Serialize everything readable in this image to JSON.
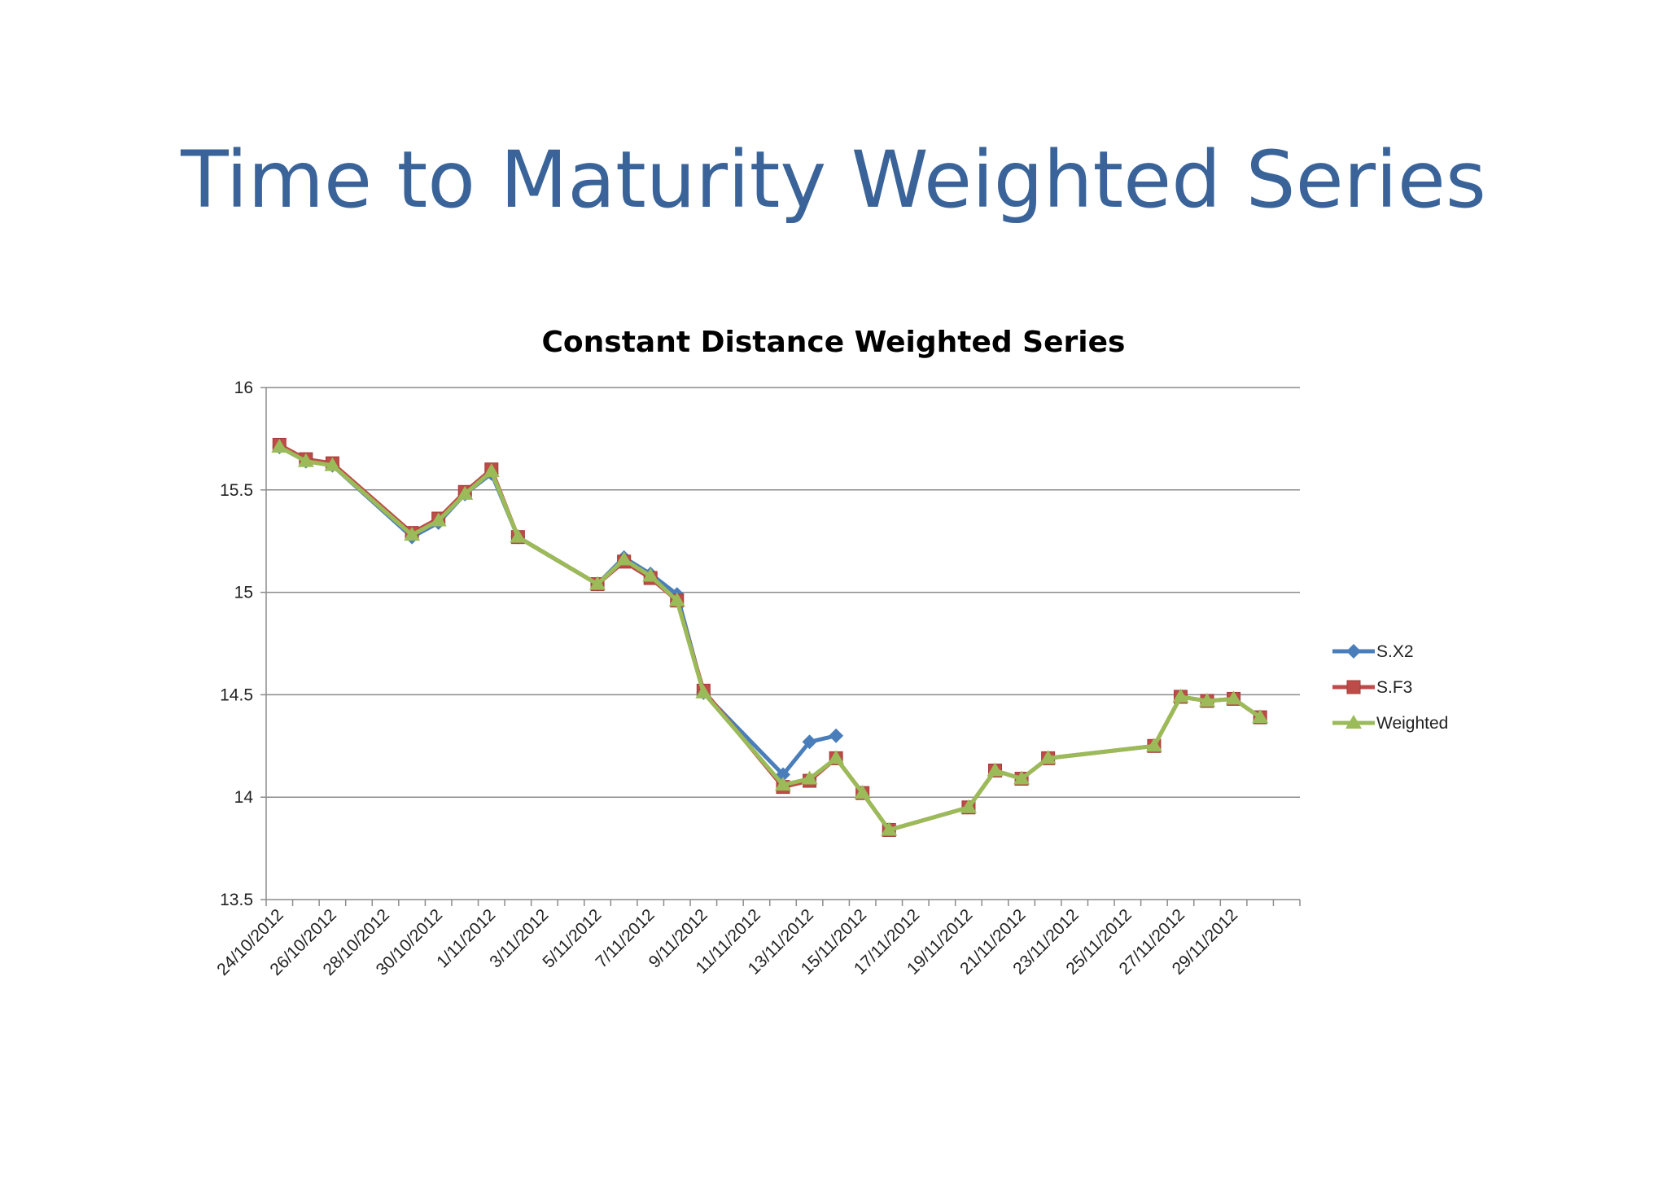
{
  "slide": {
    "title": "Time to Maturity Weighted Series"
  },
  "chart_data": {
    "type": "line",
    "title": "Constant Distance Weighted Series",
    "xlabel": "",
    "ylabel": "",
    "ylim": [
      13.5,
      16
    ],
    "yticks": [
      "16",
      "15.5",
      "15",
      "14.5",
      "14",
      "13.5"
    ],
    "xlim": [
      "2012-10-24",
      "2012-12-02"
    ],
    "x_tick_labels": [
      "24/10/2012",
      "26/10/2012",
      "28/10/2012",
      "30/10/2012",
      "1/11/2012",
      "3/11/2012",
      "5/11/2012",
      "7/11/2012",
      "9/11/2012",
      "11/11/2012",
      "13/11/2012",
      "15/11/2012",
      "17/11/2012",
      "19/11/2012",
      "21/11/2012",
      "23/11/2012",
      "25/11/2012",
      "27/11/2012",
      "29/11/2012"
    ],
    "grid": true,
    "legend_position": "right",
    "series": [
      {
        "name": "S.X2",
        "color": "#4a7ebb",
        "marker": "diamond",
        "points": [
          [
            "2012-10-24",
            15.71
          ],
          [
            "2012-10-25",
            15.64
          ],
          [
            "2012-10-26",
            15.62
          ],
          [
            "2012-10-29",
            15.27
          ],
          [
            "2012-10-30",
            15.34
          ],
          [
            "2012-10-31",
            15.48
          ],
          [
            "2012-11-01",
            15.58
          ],
          [
            "2012-11-02",
            15.27
          ],
          [
            "2012-11-05",
            15.04
          ],
          [
            "2012-11-06",
            15.17
          ],
          [
            "2012-11-07",
            15.09
          ],
          [
            "2012-11-08",
            14.99
          ],
          [
            "2012-11-09",
            14.51
          ],
          [
            "2012-11-12",
            14.11
          ],
          [
            "2012-11-13",
            14.27
          ],
          [
            "2012-11-14",
            14.3
          ]
        ]
      },
      {
        "name": "S.F3",
        "color": "#be4b48",
        "marker": "square",
        "points": [
          [
            "2012-10-24",
            15.72
          ],
          [
            "2012-10-25",
            15.65
          ],
          [
            "2012-10-26",
            15.63
          ],
          [
            "2012-10-29",
            15.29
          ],
          [
            "2012-10-30",
            15.36
          ],
          [
            "2012-10-31",
            15.49
          ],
          [
            "2012-11-01",
            15.6
          ],
          [
            "2012-11-02",
            15.27
          ],
          [
            "2012-11-05",
            15.04
          ],
          [
            "2012-11-06",
            15.15
          ],
          [
            "2012-11-07",
            15.07
          ],
          [
            "2012-11-08",
            14.96
          ],
          [
            "2012-11-09",
            14.52
          ],
          [
            "2012-11-12",
            14.05
          ],
          [
            "2012-11-13",
            14.08
          ],
          [
            "2012-11-14",
            14.19
          ],
          [
            "2012-11-15",
            14.02
          ],
          [
            "2012-11-16",
            13.84
          ],
          [
            "2012-11-19",
            13.95
          ],
          [
            "2012-11-20",
            14.13
          ],
          [
            "2012-11-21",
            14.09
          ],
          [
            "2012-11-22",
            14.19
          ],
          [
            "2012-11-26",
            14.25
          ],
          [
            "2012-11-27",
            14.49
          ],
          [
            "2012-11-28",
            14.47
          ],
          [
            "2012-11-29",
            14.48
          ],
          [
            "2012-11-30",
            14.39
          ]
        ]
      },
      {
        "name": "Weighted",
        "color": "#9bbb59",
        "marker": "triangle",
        "points": [
          [
            "2012-10-24",
            15.71
          ],
          [
            "2012-10-25",
            15.64
          ],
          [
            "2012-10-26",
            15.62
          ],
          [
            "2012-10-29",
            15.28
          ],
          [
            "2012-10-30",
            15.35
          ],
          [
            "2012-10-31",
            15.48
          ],
          [
            "2012-11-01",
            15.59
          ],
          [
            "2012-11-02",
            15.27
          ],
          [
            "2012-11-05",
            15.04
          ],
          [
            "2012-11-06",
            15.16
          ],
          [
            "2012-11-07",
            15.08
          ],
          [
            "2012-11-08",
            14.96
          ],
          [
            "2012-11-09",
            14.51
          ],
          [
            "2012-11-12",
            14.06
          ],
          [
            "2012-11-13",
            14.09
          ],
          [
            "2012-11-14",
            14.19
          ],
          [
            "2012-11-15",
            14.02
          ],
          [
            "2012-11-16",
            13.84
          ],
          [
            "2012-11-19",
            13.95
          ],
          [
            "2012-11-20",
            14.13
          ],
          [
            "2012-11-21",
            14.09
          ],
          [
            "2012-11-22",
            14.19
          ],
          [
            "2012-11-26",
            14.25
          ],
          [
            "2012-11-27",
            14.49
          ],
          [
            "2012-11-28",
            14.47
          ],
          [
            "2012-11-29",
            14.48
          ],
          [
            "2012-11-30",
            14.39
          ]
        ]
      }
    ]
  }
}
